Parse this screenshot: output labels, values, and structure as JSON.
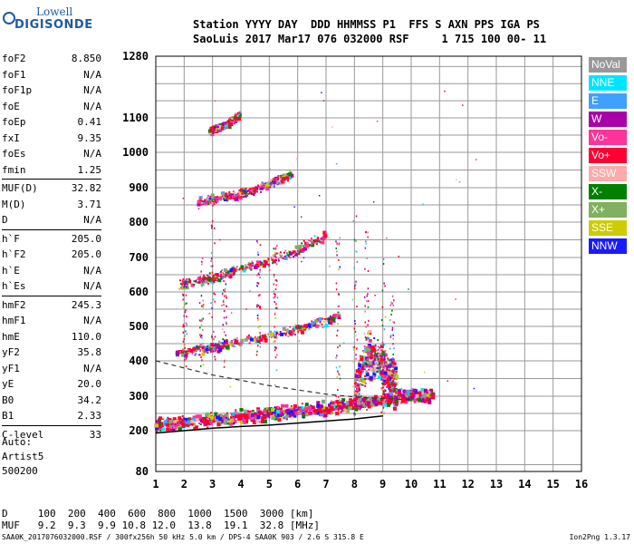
{
  "logo": {
    "line1": "Lowell",
    "line2": "DIGISONDE"
  },
  "header": {
    "row1": "Station YYYY DAY  DDD HHMMSS P1  FFS S AXN PPS IGA PS",
    "row2": "SaoLuis 2017 Mar17 076 032000 RSF     1 715 100 00- 11"
  },
  "params": [
    {
      "k": "foF2",
      "v": "8.850"
    },
    {
      "k": "foF1",
      "v": "N/A"
    },
    {
      "k": "foF1p",
      "v": "N/A"
    },
    {
      "k": "foE",
      "v": "N/A"
    },
    {
      "k": "foEp",
      "v": "0.41"
    },
    {
      "k": "fxI",
      "v": "9.35"
    },
    {
      "k": "foEs",
      "v": "N/A"
    },
    {
      "k": "fmin",
      "v": "1.25"
    },
    {
      "k": "MUF(D)",
      "v": "32.82"
    },
    {
      "k": "M(D)",
      "v": "3.71"
    },
    {
      "k": "D",
      "v": "N/A"
    },
    {
      "k": "h`F",
      "v": "205.0"
    },
    {
      "k": "h`F2",
      "v": "205.0"
    },
    {
      "k": "h`E",
      "v": "N/A"
    },
    {
      "k": "h`Es",
      "v": "N/A"
    },
    {
      "k": "hmF2",
      "v": "245.3"
    },
    {
      "k": "hmF1",
      "v": "N/A"
    },
    {
      "k": "hmE",
      "v": "110.0"
    },
    {
      "k": "yF2",
      "v": "35.8"
    },
    {
      "k": "yF1",
      "v": "N/A"
    },
    {
      "k": "yE",
      "v": "20.0"
    },
    {
      "k": "B0",
      "v": "34.2"
    },
    {
      "k": "B1",
      "v": "2.33"
    },
    {
      "k": "C-level",
      "v": "33"
    }
  ],
  "auto": {
    "l1": "Auto:",
    "l2": "Artist5",
    "l3": "500200"
  },
  "legend": [
    {
      "label": "NoVal",
      "color": "#999999"
    },
    {
      "label": "NNE",
      "color": "#00e5ff"
    },
    {
      "label": "E",
      "color": "#40a0ff"
    },
    {
      "label": "W",
      "color": "#aa00aa"
    },
    {
      "label": "Vo-",
      "color": "#ff3399"
    },
    {
      "label": "Vo+",
      "color": "#ff0033"
    },
    {
      "label": "SSW",
      "color": "#ffaaaa"
    },
    {
      "label": "X-",
      "color": "#008000"
    },
    {
      "label": "X+",
      "color": "#80b060"
    },
    {
      "label": "SSE",
      "color": "#cccc00"
    },
    {
      "label": "NNW",
      "color": "#1a1aff"
    }
  ],
  "chart_data": {
    "type": "scatter",
    "xlim": [
      1,
      16
    ],
    "ylim": [
      80,
      1280
    ],
    "x_ticks": [
      1,
      2,
      3,
      4,
      5,
      6,
      7,
      8,
      9,
      10,
      11,
      12,
      13,
      14,
      15,
      16
    ],
    "y_ticks": [
      80,
      200,
      300,
      400,
      500,
      600,
      700,
      800,
      900,
      1000,
      1100,
      1280
    ],
    "grid": true,
    "traces": [
      {
        "name": "F trace 1",
        "points": [
          [
            1.0,
            215
          ],
          [
            2,
            222
          ],
          [
            3,
            232
          ],
          [
            4,
            240
          ],
          [
            5,
            248
          ],
          [
            6,
            256
          ],
          [
            7,
            265
          ],
          [
            8,
            275
          ],
          [
            9,
            290
          ],
          [
            10,
            302
          ],
          [
            10.8,
            300
          ]
        ],
        "spread": 18
      },
      {
        "name": "F trace 2",
        "points": [
          [
            1.7,
            420
          ],
          [
            3,
            440
          ],
          [
            4,
            455
          ],
          [
            5,
            470
          ],
          [
            6,
            490
          ],
          [
            7,
            515
          ],
          [
            7.5,
            530
          ]
        ],
        "spread": 14
      },
      {
        "name": "F trace 3",
        "points": [
          [
            1.8,
            620
          ],
          [
            3,
            640
          ],
          [
            4,
            665
          ],
          [
            5,
            690
          ],
          [
            6,
            720
          ],
          [
            7,
            760
          ]
        ],
        "spread": 14
      },
      {
        "name": "F trace 4",
        "points": [
          [
            2.5,
            860
          ],
          [
            4,
            880
          ],
          [
            5,
            910
          ],
          [
            5.8,
            940
          ]
        ],
        "spread": 12
      },
      {
        "name": "F trace 5",
        "points": [
          [
            2.9,
            1060
          ],
          [
            3.5,
            1080
          ],
          [
            4,
            1110
          ]
        ],
        "spread": 10
      },
      {
        "name": "spread F",
        "points": [
          [
            8,
            300
          ],
          [
            8.5,
            420
          ],
          [
            9,
            380
          ],
          [
            9.5,
            330
          ]
        ],
        "spread": 60
      }
    ],
    "profile_line": [
      [
        1,
        193
      ],
      [
        2,
        200
      ],
      [
        3,
        207
      ],
      [
        4,
        212
      ],
      [
        5,
        216
      ],
      [
        6,
        222
      ],
      [
        7,
        228
      ],
      [
        8,
        234
      ],
      [
        9,
        243
      ]
    ],
    "dashed_line": [
      [
        1,
        400
      ],
      [
        2,
        380
      ],
      [
        3,
        360
      ],
      [
        4,
        345
      ],
      [
        5,
        330
      ],
      [
        6,
        318
      ],
      [
        7,
        306
      ],
      [
        8,
        298
      ],
      [
        9,
        293
      ],
      [
        10,
        290
      ]
    ]
  },
  "d_table": {
    "d_label": "D",
    "d_values": [
      "100",
      "200",
      "400",
      "600",
      "800",
      "1000",
      "1500",
      "3000"
    ],
    "d_unit": "[km]",
    "muf_label": "MUF",
    "muf_values": [
      "9.2",
      "9.3",
      "9.9",
      "10.8",
      "12.0",
      "13.8",
      "19.1",
      "32.8"
    ],
    "muf_unit": "[MHz]"
  },
  "footer": "SAA0K_2017076032000.RSF / 300fx256h 50 kHz 5.0 km / DPS-4 SAA0K 903 / 2.6 S 315.8 E",
  "version": "Ion2Png 1.3.17"
}
